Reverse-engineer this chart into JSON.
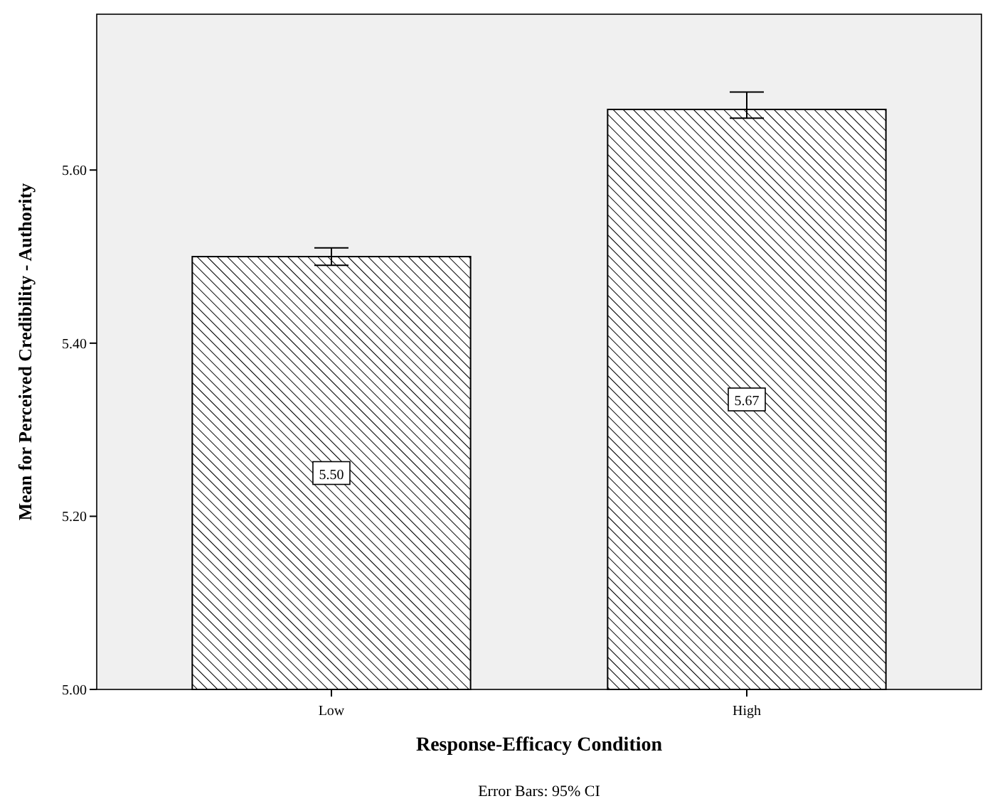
{
  "chart_data": {
    "type": "bar",
    "xlabel": "Response-Efficacy Condition",
    "ylabel": "Mean for Perceived Credibility - Authority",
    "annotations": [
      "Error Bars: 95% CI"
    ],
    "categories": [
      "Low",
      "High"
    ],
    "values": [
      5.5,
      5.67
    ],
    "color": "#000000",
    "errors": [
      [
        5.49,
        5.51
      ],
      [
        5.66,
        5.69
      ]
    ],
    "value_labels": [
      "5.50",
      "5.67"
    ],
    "ylim": [
      5.0,
      5.78
    ],
    "yticks": [
      {
        "value": 5.0,
        "label": "5.00"
      },
      {
        "value": 5.2,
        "label": "5.20"
      },
      {
        "value": 5.4,
        "label": "5.40"
      },
      {
        "value": 5.6,
        "label": "5.60"
      }
    ]
  }
}
